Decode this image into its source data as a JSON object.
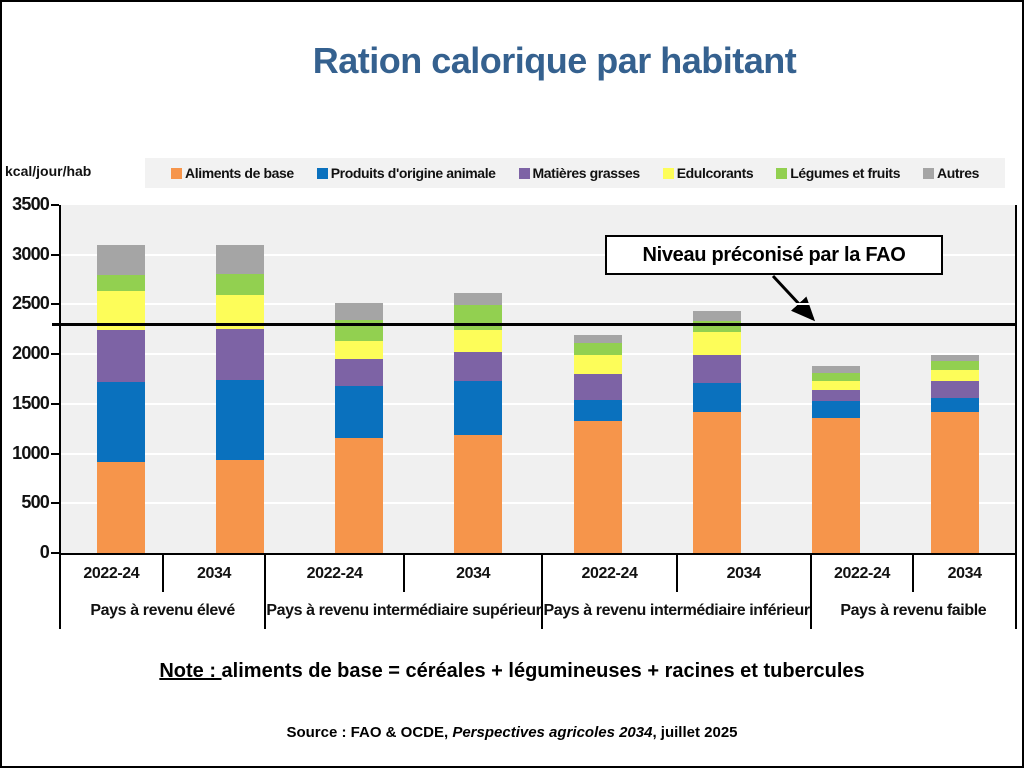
{
  "title": "Ration calorique par habitant",
  "annotation": {
    "label": "Niveau préconisé par la FAO"
  },
  "note": {
    "prefix": "Note : ",
    "text": "aliments de base = céréales + légumineuses + racines et tubercules"
  },
  "source": {
    "prefix": "Source : FAO & OCDE, ",
    "italic": "Perspectives agricoles 2034",
    "suffix": ", juillet 2025"
  },
  "colors": {
    "title_text": "#35618F",
    "plot_background": "#F0F0F0",
    "legend_background": "#F2F2F2",
    "reference_line": "#000000"
  },
  "chart_data": {
    "type": "bar",
    "subtype": "stacked-vertical",
    "title": "Ration calorique par habitant",
    "ylabel": "kcal/jour/hab",
    "xlabel": "",
    "ylim": [
      0,
      3500
    ],
    "ytick_step": 500,
    "yticks": [
      0,
      500,
      1000,
      1500,
      2000,
      2500,
      3000,
      3500
    ],
    "grid": true,
    "legend_position": "top",
    "categories": [
      "Pays à revenu élevé 2022-24",
      "Pays à revenu élevé 2034",
      "Pays à revenu intermédiaire supérieur 2022-24",
      "Pays à revenu intermédiaire supérieur 2034",
      "Pays à revenu intermédiaire inférieur 2022-24",
      "Pays à revenu intermédiaire inférieur 2034",
      "Pays à revenu faible 2022-24",
      "Pays à revenu faible 2034"
    ],
    "groups": [
      {
        "label": "Pays à revenu élevé",
        "years": [
          "2022-24",
          "2034"
        ]
      },
      {
        "label": "Pays à revenu intermédiaire supérieur",
        "years": [
          "2022-24",
          "2034"
        ]
      },
      {
        "label": "Pays à revenu intermédiaire inférieur",
        "years": [
          "2022-24",
          "2034"
        ]
      },
      {
        "label": "Pays à revenu faible",
        "years": [
          "2022-24",
          "2034"
        ]
      }
    ],
    "series": [
      {
        "name": "Aliments de base",
        "color": "#F6954B",
        "values": [
          920,
          940,
          1160,
          1190,
          1330,
          1420,
          1360,
          1420
        ]
      },
      {
        "name": "Produits d'origine animale",
        "color": "#0A71BE",
        "values": [
          800,
          800,
          520,
          540,
          210,
          290,
          170,
          140
        ]
      },
      {
        "name": "Matières grasses",
        "color": "#7D63A5",
        "values": [
          520,
          510,
          270,
          290,
          260,
          280,
          110,
          170
        ]
      },
      {
        "name": "Edulcorants",
        "color": "#FDFD59",
        "values": [
          400,
          350,
          180,
          220,
          190,
          230,
          90,
          110
        ]
      },
      {
        "name": "Légumes et fruits",
        "color": "#92D050",
        "values": [
          160,
          210,
          210,
          250,
          120,
          110,
          80,
          90
        ]
      },
      {
        "name": "Autres",
        "color": "#A5A5A5",
        "values": [
          300,
          290,
          170,
          130,
          80,
          100,
          70,
          60
        ]
      }
    ],
    "totals": [
      3100,
      3100,
      2510,
      2620,
      2190,
      2430,
      1880,
      1990
    ],
    "reference_line": {
      "value": 2300,
      "label": "Niveau préconisé par la FAO"
    }
  }
}
